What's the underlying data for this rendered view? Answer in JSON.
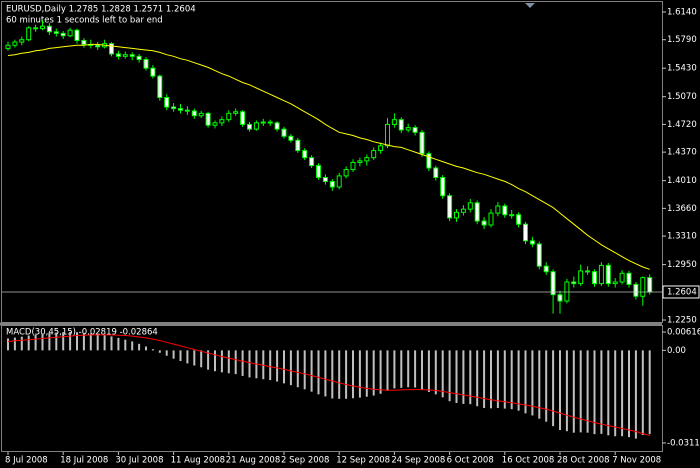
{
  "chart_data": [
    {
      "type": "candlestick",
      "title": "EURUSD,Daily  1.2785 1.2828 1.2571 1.2604",
      "subtitle": "60 minutes 1 seconds left to bar end",
      "categories": [
        "8 Jul 2008",
        null,
        null,
        null,
        null,
        null,
        null,
        null,
        "18 Jul 2008",
        null,
        null,
        null,
        null,
        null,
        null,
        null,
        "30 Jul 2008",
        null,
        null,
        null,
        null,
        null,
        null,
        null,
        "11 Aug 2008",
        null,
        null,
        null,
        null,
        null,
        null,
        null,
        "21 Aug 2008",
        null,
        null,
        null,
        null,
        null,
        null,
        null,
        "2 Sep 2008",
        null,
        null,
        null,
        null,
        null,
        null,
        null,
        "12 Sep 2008",
        null,
        null,
        null,
        null,
        null,
        null,
        null,
        "24 Sep 2008",
        null,
        null,
        null,
        null,
        null,
        null,
        null,
        "6 Oct 2008",
        null,
        null,
        null,
        null,
        null,
        null,
        null,
        "16 Oct 2008",
        null,
        null,
        null,
        null,
        null,
        null,
        null,
        "28 Oct 2008",
        null,
        null,
        null,
        null,
        null,
        null,
        null,
        "7 Nov 2008",
        null,
        null,
        null,
        null,
        null
      ],
      "ohlc": [
        [
          1.568,
          1.5765,
          1.565,
          1.572
        ],
        [
          1.572,
          1.579,
          1.569,
          1.576
        ],
        [
          1.576,
          1.583,
          1.572,
          1.579
        ],
        [
          1.579,
          1.596,
          1.577,
          1.594
        ],
        [
          1.594,
          1.598,
          1.589,
          1.593
        ],
        [
          1.593,
          1.6038,
          1.591,
          1.596
        ],
        [
          1.596,
          1.6,
          1.585,
          1.589
        ],
        [
          1.589,
          1.593,
          1.583,
          1.587
        ],
        [
          1.587,
          1.59,
          1.58,
          1.584
        ],
        [
          1.584,
          1.594,
          1.582,
          1.591
        ],
        [
          1.591,
          1.593,
          1.574,
          1.578
        ],
        [
          1.578,
          1.581,
          1.569,
          1.573
        ],
        [
          1.573,
          1.579,
          1.568,
          1.572
        ],
        [
          1.572,
          1.576,
          1.566,
          1.57
        ],
        [
          1.57,
          1.579,
          1.568,
          1.574
        ],
        [
          1.574,
          1.576,
          1.558,
          1.561
        ],
        [
          1.561,
          1.565,
          1.554,
          1.558
        ],
        [
          1.558,
          1.564,
          1.555,
          1.56
        ],
        [
          1.56,
          1.563,
          1.553,
          1.558
        ],
        [
          1.558,
          1.561,
          1.55,
          1.554
        ],
        [
          1.554,
          1.557,
          1.54,
          1.543
        ],
        [
          1.543,
          1.547,
          1.53,
          1.533
        ],
        [
          1.533,
          1.535,
          1.502,
          1.506
        ],
        [
          1.506,
          1.51,
          1.49,
          1.494
        ],
        [
          1.494,
          1.499,
          1.488,
          1.492
        ],
        [
          1.492,
          1.498,
          1.486,
          1.49
        ],
        [
          1.49,
          1.495,
          1.484,
          1.489
        ],
        [
          1.489,
          1.492,
          1.479,
          1.483
        ],
        [
          1.483,
          1.489,
          1.48,
          1.486
        ],
        [
          1.486,
          1.488,
          1.468,
          1.471
        ],
        [
          1.471,
          1.477,
          1.467,
          1.474
        ],
        [
          1.474,
          1.482,
          1.47,
          1.478
        ],
        [
          1.478,
          1.49,
          1.475,
          1.486
        ],
        [
          1.486,
          1.492,
          1.483,
          1.488
        ],
        [
          1.488,
          1.49,
          1.469,
          1.472
        ],
        [
          1.472,
          1.475,
          1.463,
          1.466
        ],
        [
          1.466,
          1.477,
          1.464,
          1.474
        ],
        [
          1.474,
          1.479,
          1.47,
          1.475
        ],
        [
          1.475,
          1.478,
          1.47,
          1.474
        ],
        [
          1.474,
          1.476,
          1.463,
          1.466
        ],
        [
          1.466,
          1.469,
          1.454,
          1.457
        ],
        [
          1.457,
          1.46,
          1.449,
          1.452
        ],
        [
          1.452,
          1.455,
          1.436,
          1.439
        ],
        [
          1.439,
          1.442,
          1.427,
          1.43
        ],
        [
          1.43,
          1.433,
          1.417,
          1.42
        ],
        [
          1.42,
          1.423,
          1.402,
          1.405
        ],
        [
          1.405,
          1.409,
          1.396,
          1.4
        ],
        [
          1.4,
          1.403,
          1.388,
          1.393
        ],
        [
          1.393,
          1.411,
          1.39,
          1.407
        ],
        [
          1.407,
          1.419,
          1.404,
          1.415
        ],
        [
          1.415,
          1.428,
          1.412,
          1.424
        ],
        [
          1.424,
          1.43,
          1.419,
          1.426
        ],
        [
          1.426,
          1.434,
          1.42,
          1.43
        ],
        [
          1.43,
          1.443,
          1.427,
          1.439
        ],
        [
          1.439,
          1.449,
          1.435,
          1.445
        ],
        [
          1.445,
          1.48,
          1.442,
          1.472
        ],
        [
          1.472,
          1.486,
          1.468,
          1.478
        ],
        [
          1.478,
          1.481,
          1.461,
          1.465
        ],
        [
          1.465,
          1.473,
          1.462,
          1.468
        ],
        [
          1.468,
          1.471,
          1.458,
          1.462
        ],
        [
          1.462,
          1.465,
          1.431,
          1.435
        ],
        [
          1.435,
          1.438,
          1.413,
          1.417
        ],
        [
          1.417,
          1.42,
          1.401,
          1.405
        ],
        [
          1.405,
          1.408,
          1.378,
          1.382
        ],
        [
          1.382,
          1.385,
          1.35,
          1.354
        ],
        [
          1.354,
          1.365,
          1.349,
          1.361
        ],
        [
          1.361,
          1.37,
          1.357,
          1.365
        ],
        [
          1.365,
          1.378,
          1.361,
          1.373
        ],
        [
          1.373,
          1.376,
          1.346,
          1.35
        ],
        [
          1.35,
          1.355,
          1.34,
          1.345
        ],
        [
          1.345,
          1.365,
          1.342,
          1.36
        ],
        [
          1.36,
          1.374,
          1.356,
          1.369
        ],
        [
          1.369,
          1.372,
          1.354,
          1.358
        ],
        [
          1.358,
          1.364,
          1.353,
          1.358
        ],
        [
          1.358,
          1.361,
          1.342,
          1.346
        ],
        [
          1.346,
          1.349,
          1.321,
          1.325
        ],
        [
          1.325,
          1.33,
          1.317,
          1.321
        ],
        [
          1.321,
          1.324,
          1.289,
          1.293
        ],
        [
          1.293,
          1.298,
          1.282,
          1.286
        ],
        [
          1.286,
          1.289,
          1.233,
          1.257
        ],
        [
          1.257,
          1.262,
          1.233,
          1.249
        ],
        [
          1.249,
          1.277,
          1.246,
          1.273
        ],
        [
          1.273,
          1.28,
          1.266,
          1.271
        ],
        [
          1.271,
          1.295,
          1.268,
          1.287
        ],
        [
          1.287,
          1.293,
          1.282,
          1.286
        ],
        [
          1.286,
          1.289,
          1.267,
          1.271
        ],
        [
          1.271,
          1.298,
          1.268,
          1.294
        ],
        [
          1.294,
          1.297,
          1.267,
          1.271
        ],
        [
          1.271,
          1.278,
          1.266,
          1.273
        ],
        [
          1.273,
          1.288,
          1.27,
          1.284
        ],
        [
          1.284,
          1.287,
          1.266,
          1.27
        ],
        [
          1.27,
          1.273,
          1.251,
          1.255
        ],
        [
          1.255,
          1.28,
          1.243,
          1.2785
        ],
        [
          1.2785,
          1.2828,
          1.2571,
          1.2604
        ]
      ],
      "series": [
        {
          "type": "line",
          "color": "#ffff00",
          "values": [
            1.559,
            1.56,
            1.562,
            1.563,
            1.565,
            1.566,
            1.568,
            1.569,
            1.57,
            1.571,
            1.572,
            1.572,
            1.573,
            1.573,
            1.572,
            1.571,
            1.57,
            1.569,
            1.568,
            1.567,
            1.566,
            1.565,
            1.563,
            1.56,
            1.558,
            1.555,
            1.553,
            1.55,
            1.547,
            1.544,
            1.54,
            1.536,
            1.533,
            1.529,
            1.525,
            1.522,
            1.518,
            1.514,
            1.51,
            1.506,
            1.502,
            1.498,
            1.493,
            1.488,
            1.483,
            1.478,
            1.472,
            1.467,
            1.462,
            1.46,
            1.458,
            1.455,
            1.453,
            1.45,
            1.448,
            1.446,
            1.444,
            1.443,
            1.44,
            1.437,
            1.434,
            1.431,
            1.428,
            1.425,
            1.422,
            1.419,
            1.417,
            1.414,
            1.411,
            1.409,
            1.406,
            1.403,
            1.4,
            1.396,
            1.391,
            1.387,
            1.382,
            1.377,
            1.372,
            1.367,
            1.36,
            1.353,
            1.346,
            1.339,
            1.332,
            1.326,
            1.32,
            1.315,
            1.31,
            1.305,
            1.3,
            1.296,
            1.292,
            1.289
          ]
        }
      ],
      "bull_color": "#000000",
      "bear_color": "#ffffff",
      "wick_color": "#00ff00",
      "ylim": [
        1.2225,
        1.6266
      ],
      "yticks": [
        {
          "value": 1.614,
          "label": "1.6140"
        },
        {
          "value": 1.579,
          "label": "1.5790"
        },
        {
          "value": 1.543,
          "label": "1.5430"
        },
        {
          "value": 1.507,
          "label": "1.5070"
        },
        {
          "value": 1.472,
          "label": "1.4720"
        },
        {
          "value": 1.437,
          "label": "1.4370"
        },
        {
          "value": 1.401,
          "label": "1.4010"
        },
        {
          "value": 1.366,
          "label": "1.3660"
        },
        {
          "value": 1.331,
          "label": "1.3310"
        },
        {
          "value": 1.295,
          "label": "1.2950"
        },
        {
          "value": 1.225,
          "label": "1.2250"
        }
      ],
      "grid": false
    },
    {
      "type": "macd",
      "title": "MACD(30,45,15) -0.02819 -0.02864",
      "series": [
        {
          "type": "bar",
          "color": "#c0c0c0",
          "values": [
            0.004,
            0.0043,
            0.0046,
            0.005,
            0.0053,
            0.0056,
            0.0058,
            0.006,
            0.0061,
            0.0062,
            0.0061,
            0.0059,
            0.0057,
            0.0054,
            0.0051,
            0.0047,
            0.0042,
            0.0036,
            0.003,
            0.0022,
            0.0013,
            0.0004,
            -0.0008,
            -0.0018,
            -0.0028,
            -0.0036,
            -0.0044,
            -0.0051,
            -0.0057,
            -0.0065,
            -0.007,
            -0.0074,
            -0.0077,
            -0.008,
            -0.0086,
            -0.0091,
            -0.0094,
            -0.0097,
            -0.01,
            -0.0105,
            -0.0111,
            -0.0117,
            -0.0124,
            -0.0131,
            -0.0139,
            -0.0148,
            -0.0155,
            -0.0162,
            -0.0163,
            -0.0163,
            -0.0161,
            -0.0159,
            -0.0156,
            -0.0152,
            -0.0146,
            -0.0136,
            -0.0128,
            -0.0126,
            -0.0124,
            -0.0125,
            -0.0132,
            -0.014,
            -0.0148,
            -0.0158,
            -0.0171,
            -0.0177,
            -0.018,
            -0.0181,
            -0.0188,
            -0.0194,
            -0.0195,
            -0.0194,
            -0.0196,
            -0.0198,
            -0.0203,
            -0.0212,
            -0.0219,
            -0.023,
            -0.024,
            -0.0255,
            -0.0268,
            -0.0272,
            -0.0277,
            -0.0276,
            -0.0277,
            -0.0282,
            -0.0281,
            -0.0286,
            -0.0289,
            -0.0289,
            -0.0292,
            -0.0297,
            -0.0285,
            -0.02819
          ]
        },
        {
          "type": "line",
          "color": "#ff0000",
          "values": [
            0.003,
            0.0032,
            0.0034,
            0.0036,
            0.0038,
            0.004,
            0.0042,
            0.0044,
            0.0046,
            0.0048,
            0.005,
            0.0051,
            0.0052,
            0.0052,
            0.0052,
            0.0052,
            0.0051,
            0.005,
            0.0048,
            0.0045,
            0.0042,
            0.0038,
            0.0033,
            0.0027,
            0.0021,
            0.0015,
            0.0009,
            0.0003,
            -0.0003,
            -0.0009,
            -0.0015,
            -0.0021,
            -0.0026,
            -0.0031,
            -0.0036,
            -0.0041,
            -0.0046,
            -0.005,
            -0.0055,
            -0.0059,
            -0.0064,
            -0.0069,
            -0.0074,
            -0.0079,
            -0.0085,
            -0.0091,
            -0.0097,
            -0.0103,
            -0.0109,
            -0.0115,
            -0.012,
            -0.0124,
            -0.0128,
            -0.0131,
            -0.0133,
            -0.0134,
            -0.0134,
            -0.0133,
            -0.0132,
            -0.0132,
            -0.0132,
            -0.0133,
            -0.0135,
            -0.0138,
            -0.0142,
            -0.0146,
            -0.015,
            -0.0154,
            -0.0158,
            -0.0162,
            -0.0166,
            -0.017,
            -0.0173,
            -0.0176,
            -0.018,
            -0.0184,
            -0.0188,
            -0.0193,
            -0.0198,
            -0.0204,
            -0.0211,
            -0.0218,
            -0.0225,
            -0.0231,
            -0.0237,
            -0.0243,
            -0.0248,
            -0.0253,
            -0.0258,
            -0.0263,
            -0.0268,
            -0.0273,
            -0.028,
            -0.02864
          ]
        }
      ],
      "ylim": [
        -0.0342,
        0.0082
      ],
      "yticks": [
        0.00616,
        {
          "value": 0,
          "label": "0.00"
        },
        -0.03115
      ],
      "grid": false
    }
  ]
}
